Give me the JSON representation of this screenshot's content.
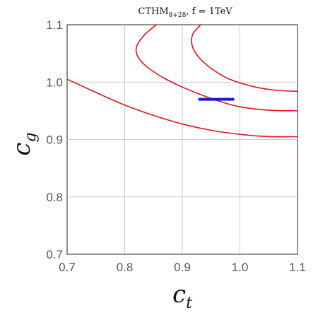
{
  "chart_data": {
    "type": "line",
    "title": "CTHM",
    "title_sub": "8+28",
    "title_suffix": ",  f = 1TeV",
    "xlabel_main": "c",
    "xlabel_sub": "t",
    "ylabel_main": "c",
    "ylabel_sub": "g",
    "xlim": [
      0.7,
      1.1
    ],
    "ylim": [
      0.7,
      1.1
    ],
    "x_ticks": [
      "0.7",
      "0.8",
      "0.9",
      "1.0",
      "1.1"
    ],
    "y_ticks": [
      "0.7",
      "0.8",
      "0.9",
      "1.0",
      "1.1"
    ],
    "grid": true,
    "colors": {
      "contours": "#e0141e",
      "band": "#1a1ad0",
      "grid": "#bdbdbd"
    },
    "series": [
      {
        "points": [
          [
            0.7,
            1.005
          ],
          [
            0.75,
            0.982
          ],
          [
            0.8,
            0.96
          ],
          [
            0.85,
            0.942
          ],
          [
            0.9,
            0.927
          ],
          [
            0.95,
            0.916
          ],
          [
            1.0,
            0.909
          ],
          [
            1.05,
            0.905
          ],
          [
            1.1,
            0.905
          ]
        ]
      },
      {
        "points": [
          [
            0.855,
            1.1
          ],
          [
            0.835,
            1.083
          ],
          [
            0.821,
            1.063
          ],
          [
            0.822,
            1.046
          ],
          [
            0.838,
            1.027
          ],
          [
            0.87,
            1.006
          ],
          [
            0.91,
            0.987
          ],
          [
            0.96,
            0.968
          ],
          [
            1.0,
            0.957
          ],
          [
            1.05,
            0.951
          ],
          [
            1.1,
            0.95
          ]
        ]
      },
      {
        "points": [
          [
            0.932,
            1.1
          ],
          [
            0.918,
            1.083
          ],
          [
            0.917,
            1.064
          ],
          [
            0.928,
            1.044
          ],
          [
            0.95,
            1.024
          ],
          [
            0.98,
            1.006
          ],
          [
            1.02,
            0.993
          ],
          [
            1.06,
            0.986
          ],
          [
            1.1,
            0.984
          ]
        ]
      },
      {
        "points": [
          [
            0.93,
            0.97
          ],
          [
            0.988,
            0.97
          ]
        ]
      }
    ]
  }
}
